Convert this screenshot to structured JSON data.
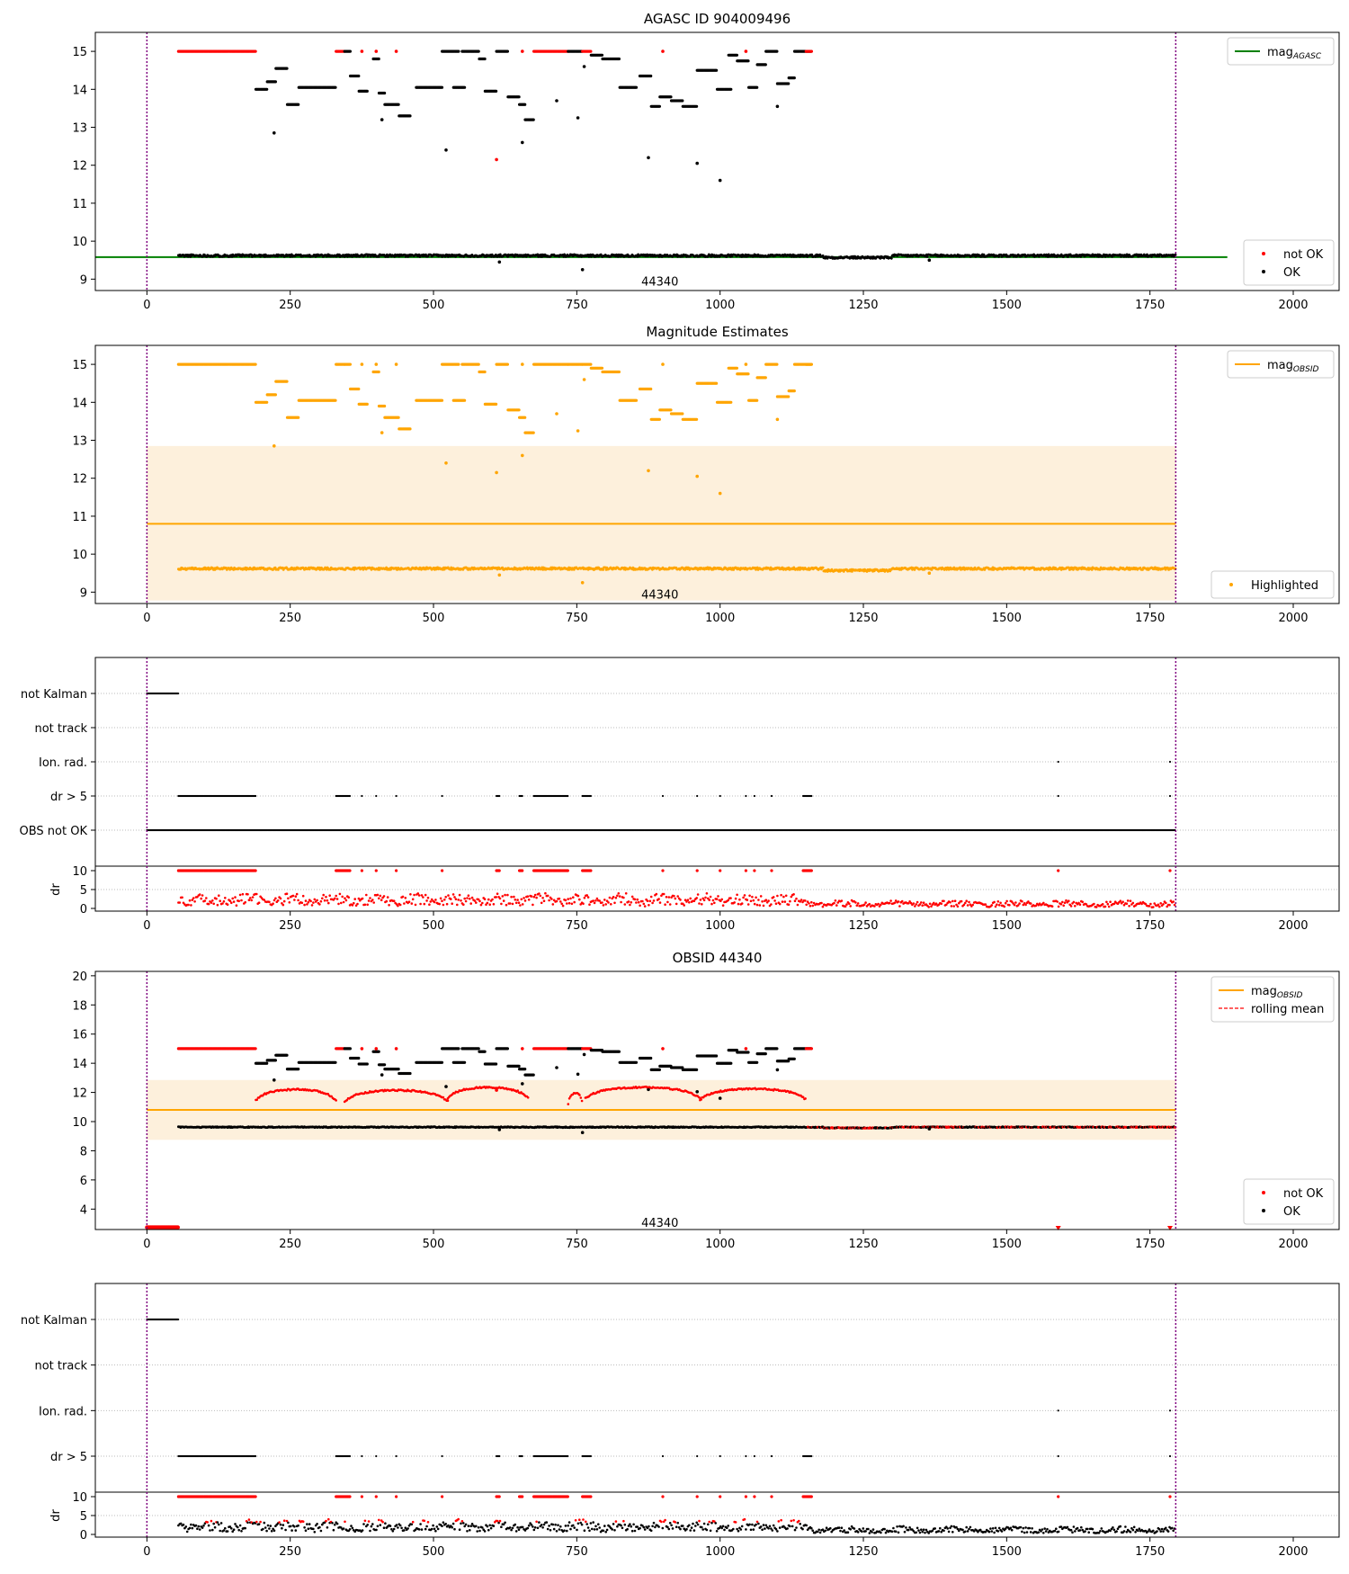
{
  "colors": {
    "not_ok": "#ff0000",
    "ok": "#000000",
    "agasc_line": "#008000",
    "obsid_line": "#ffa500",
    "band": "#fdf0dc",
    "marker_line": "#800080",
    "rolling_mean": "#ff0000"
  },
  "chart_data": [
    {
      "type": "scatter",
      "id": "agasc",
      "title": "AGASC ID 904009496",
      "xlim": [
        -90,
        2080
      ],
      "ylim": [
        8.7,
        15.5
      ],
      "x_ticks": [
        0,
        250,
        500,
        750,
        1000,
        1250,
        1500,
        1750,
        2000
      ],
      "y_ticks": [
        9,
        10,
        11,
        12,
        13,
        14,
        15
      ],
      "hlines": [
        {
          "label": "mag",
          "label_sub": "AGASC",
          "value": 9.58,
          "from": -90,
          "to": 1885,
          "color": "#008000"
        }
      ],
      "vlines": [
        0,
        1795
      ],
      "annotation": {
        "text": "44340",
        "x": 895,
        "y": 8.95
      },
      "legend_top": [
        {
          "label": "mag",
          "label_sub": "AGASC",
          "kind": "line",
          "color": "#008000"
        }
      ],
      "legend_bottom": [
        {
          "label": "not OK",
          "kind": "dot",
          "color": "#ff0000"
        },
        {
          "label": "OK",
          "kind": "dot",
          "color": "#000000"
        }
      ],
      "baseline": {
        "from": 55,
        "to": 1795,
        "y": 9.62
      },
      "series_segments": [
        {
          "x0": 55,
          "x1": 190,
          "y": 15.0,
          "status": "not_ok"
        },
        {
          "x0": 190,
          "x1": 210,
          "y": 14.0,
          "status": "ok"
        },
        {
          "x0": 210,
          "x1": 225,
          "y": 14.2,
          "status": "ok"
        },
        {
          "x0": 225,
          "x1": 245,
          "y": 14.55,
          "status": "ok"
        },
        {
          "x0": 245,
          "x1": 265,
          "y": 13.6,
          "status": "ok"
        },
        {
          "x0": 265,
          "x1": 330,
          "y": 14.05,
          "status": "ok"
        },
        {
          "x0": 330,
          "x1": 345,
          "y": 15.0,
          "status": "not_ok"
        },
        {
          "x0": 345,
          "x1": 355,
          "y": 15.0,
          "status": "ok"
        },
        {
          "x0": 355,
          "x1": 370,
          "y": 14.35,
          "status": "ok"
        },
        {
          "x0": 370,
          "x1": 385,
          "y": 13.95,
          "status": "ok"
        },
        {
          "x0": 395,
          "x1": 405,
          "y": 14.8,
          "status": "ok"
        },
        {
          "x0": 405,
          "x1": 415,
          "y": 13.9,
          "status": "ok"
        },
        {
          "x0": 415,
          "x1": 440,
          "y": 13.6,
          "status": "ok"
        },
        {
          "x0": 440,
          "x1": 460,
          "y": 13.3,
          "status": "ok"
        },
        {
          "x0": 470,
          "x1": 515,
          "y": 14.05,
          "status": "ok"
        },
        {
          "x0": 515,
          "x1": 545,
          "y": 15.0,
          "status": "ok"
        },
        {
          "x0": 535,
          "x1": 555,
          "y": 14.05,
          "status": "ok"
        },
        {
          "x0": 550,
          "x1": 580,
          "y": 15.0,
          "status": "ok"
        },
        {
          "x0": 580,
          "x1": 590,
          "y": 14.8,
          "status": "ok"
        },
        {
          "x0": 590,
          "x1": 610,
          "y": 13.95,
          "status": "ok"
        },
        {
          "x0": 610,
          "x1": 630,
          "y": 15.0,
          "status": "ok"
        },
        {
          "x0": 630,
          "x1": 650,
          "y": 13.8,
          "status": "ok"
        },
        {
          "x0": 650,
          "x1": 660,
          "y": 13.6,
          "status": "ok"
        },
        {
          "x0": 660,
          "x1": 675,
          "y": 13.2,
          "status": "ok"
        },
        {
          "x0": 675,
          "x1": 735,
          "y": 15.0,
          "status": "not_ok"
        },
        {
          "x0": 735,
          "x1": 760,
          "y": 15.0,
          "status": "ok"
        },
        {
          "x0": 760,
          "x1": 775,
          "y": 15.0,
          "status": "not_ok"
        },
        {
          "x0": 775,
          "x1": 795,
          "y": 14.9,
          "status": "ok"
        },
        {
          "x0": 795,
          "x1": 825,
          "y": 14.8,
          "status": "ok"
        },
        {
          "x0": 825,
          "x1": 855,
          "y": 14.05,
          "status": "ok"
        },
        {
          "x0": 860,
          "x1": 880,
          "y": 14.35,
          "status": "ok"
        },
        {
          "x0": 880,
          "x1": 895,
          "y": 13.55,
          "status": "ok"
        },
        {
          "x0": 895,
          "x1": 915,
          "y": 13.8,
          "status": "ok"
        },
        {
          "x0": 915,
          "x1": 935,
          "y": 13.7,
          "status": "ok"
        },
        {
          "x0": 935,
          "x1": 960,
          "y": 13.55,
          "status": "ok"
        },
        {
          "x0": 960,
          "x1": 995,
          "y": 14.5,
          "status": "ok"
        },
        {
          "x0": 995,
          "x1": 1020,
          "y": 14.0,
          "status": "ok"
        },
        {
          "x0": 1015,
          "x1": 1030,
          "y": 14.9,
          "status": "ok"
        },
        {
          "x0": 1030,
          "x1": 1050,
          "y": 14.75,
          "status": "ok"
        },
        {
          "x0": 1050,
          "x1": 1065,
          "y": 14.05,
          "status": "ok"
        },
        {
          "x0": 1065,
          "x1": 1080,
          "y": 14.65,
          "status": "ok"
        },
        {
          "x0": 1080,
          "x1": 1100,
          "y": 15.0,
          "status": "ok"
        },
        {
          "x0": 1100,
          "x1": 1120,
          "y": 14.15,
          "status": "ok"
        },
        {
          "x0": 1120,
          "x1": 1130,
          "y": 14.3,
          "status": "ok"
        },
        {
          "x0": 1130,
          "x1": 1160,
          "y": 15.0,
          "status": "ok"
        },
        {
          "x0": 1150,
          "x1": 1160,
          "y": 15.0,
          "status": "not_ok"
        }
      ],
      "isolated": [
        {
          "x": 222,
          "y": 12.85,
          "status": "ok"
        },
        {
          "x": 410,
          "y": 13.2,
          "status": "ok"
        },
        {
          "x": 522,
          "y": 12.4,
          "status": "ok"
        },
        {
          "x": 610,
          "y": 12.15,
          "status": "not_ok"
        },
        {
          "x": 615,
          "y": 9.45,
          "status": "ok"
        },
        {
          "x": 655,
          "y": 12.6,
          "status": "ok"
        },
        {
          "x": 715,
          "y": 13.7,
          "status": "ok"
        },
        {
          "x": 752,
          "y": 13.25,
          "status": "ok"
        },
        {
          "x": 760,
          "y": 9.25,
          "status": "ok"
        },
        {
          "x": 763,
          "y": 14.6,
          "status": "ok"
        },
        {
          "x": 875,
          "y": 12.2,
          "status": "ok"
        },
        {
          "x": 960,
          "y": 12.05,
          "status": "ok"
        },
        {
          "x": 1000,
          "y": 11.6,
          "status": "ok"
        },
        {
          "x": 1100,
          "y": 13.55,
          "status": "ok"
        },
        {
          "x": 1365,
          "y": 9.5,
          "status": "ok"
        },
        {
          "x": 435,
          "y": 15.0,
          "status": "not_ok"
        },
        {
          "x": 400,
          "y": 15.0,
          "status": "not_ok"
        },
        {
          "x": 375,
          "y": 15.0,
          "status": "not_ok"
        },
        {
          "x": 900,
          "y": 15.0,
          "status": "not_ok"
        },
        {
          "x": 655,
          "y": 15.0,
          "status": "not_ok"
        },
        {
          "x": 1045,
          "y": 15.0,
          "status": "not_ok"
        }
      ]
    },
    {
      "type": "scatter",
      "id": "estimates",
      "title": "Magnitude Estimates",
      "xlim": [
        -90,
        2080
      ],
      "ylim": [
        8.7,
        15.5
      ],
      "x_ticks": [
        0,
        250,
        500,
        750,
        1000,
        1250,
        1500,
        1750,
        2000
      ],
      "y_ticks": [
        9,
        10,
        11,
        12,
        13,
        14,
        15
      ],
      "band": {
        "from": 0,
        "to": 1795,
        "low": 8.78,
        "high": 12.85
      },
      "hlines": [
        {
          "label": "mag",
          "label_sub": "OBSID",
          "value": 10.8,
          "from": 0,
          "to": 1795,
          "color": "#ffa500"
        }
      ],
      "vlines": [
        0,
        1795
      ],
      "annotation": {
        "text": "44340",
        "x": 895,
        "y": 8.95
      },
      "legend_top": [
        {
          "label": "mag",
          "label_sub": "OBSID",
          "kind": "line",
          "color": "#ffa500"
        }
      ],
      "legend_bottom": [
        {
          "label": "Highlighted",
          "kind": "dot",
          "color": "#ffa500"
        }
      ],
      "point_color": "#ffa500"
    },
    {
      "type": "scatter",
      "id": "flags1",
      "categories": [
        "not Kalman",
        "not track",
        "Ion. rad.",
        "dr > 5",
        "OBS not OK"
      ],
      "dr_ylabel": "dr",
      "dr_ylim": [
        0,
        10
      ],
      "dr_ticks": [
        0,
        5,
        10
      ],
      "xlim": [
        -90,
        2080
      ],
      "x_ticks": [
        0,
        250,
        500,
        750,
        1000,
        1250,
        1500,
        1750,
        2000
      ],
      "vlines": [
        0,
        1795
      ],
      "flag_ranges": {
        "not Kalman": [
          [
            0,
            55
          ]
        ],
        "not track": [],
        "Ion. rad.": [
          [
            1590,
            1590
          ],
          [
            1785,
            1785
          ]
        ],
        "dr > 5": [
          [
            55,
            190
          ],
          [
            330,
            355
          ],
          [
            375,
            375
          ],
          [
            400,
            400
          ],
          [
            435,
            435
          ],
          [
            515,
            515
          ],
          [
            610,
            615
          ],
          [
            650,
            655
          ],
          [
            675,
            735
          ],
          [
            760,
            775
          ],
          [
            900,
            900
          ],
          [
            960,
            960
          ],
          [
            1000,
            1000
          ],
          [
            1045,
            1045
          ],
          [
            1060,
            1060
          ],
          [
            1090,
            1090
          ],
          [
            1145,
            1160
          ],
          [
            1590,
            1590
          ],
          [
            1785,
            1785
          ]
        ],
        "OBS not OK": [
          [
            0,
            1795
          ]
        ]
      }
    },
    {
      "type": "scatter",
      "id": "obsid",
      "title": "OBSID 44340",
      "xlim": [
        -90,
        2080
      ],
      "ylim": [
        2.6,
        20.3
      ],
      "x_ticks": [
        0,
        250,
        500,
        750,
        1000,
        1250,
        1500,
        1750,
        2000
      ],
      "y_ticks": [
        4,
        6,
        8,
        10,
        12,
        14,
        16,
        18,
        20
      ],
      "band": {
        "from": 0,
        "to": 1795,
        "low": 8.75,
        "high": 12.85
      },
      "hlines": [
        {
          "label": "mag",
          "label_sub": "OBSID",
          "value": 10.8,
          "from": 0,
          "to": 1795,
          "color": "#ffa500"
        }
      ],
      "vlines": [
        0,
        1795
      ],
      "annotation": {
        "text": "44340",
        "x": 895,
        "y": 3.1
      },
      "legend_top": [
        {
          "label": "mag",
          "label_sub": "OBSID",
          "kind": "line",
          "color": "#ffa500"
        },
        {
          "label": "rolling mean",
          "kind": "dash",
          "color": "#ff0000"
        }
      ],
      "legend_bottom": [
        {
          "label": "not OK",
          "kind": "dot",
          "color": "#ff0000"
        },
        {
          "label": "OK",
          "kind": "dot",
          "color": "#000000"
        }
      ]
    },
    {
      "type": "scatter",
      "id": "flags2",
      "categories": [
        "not Kalman",
        "not track",
        "Ion. rad.",
        "dr > 5"
      ],
      "dr_ylabel": "dr",
      "dr_ylim": [
        0,
        10
      ],
      "dr_ticks": [
        0,
        5,
        10
      ],
      "xlim": [
        -90,
        2080
      ],
      "x_ticks": [
        0,
        250,
        500,
        750,
        1000,
        1250,
        1500,
        1750,
        2000
      ],
      "vlines": [
        0,
        1795
      ]
    }
  ]
}
